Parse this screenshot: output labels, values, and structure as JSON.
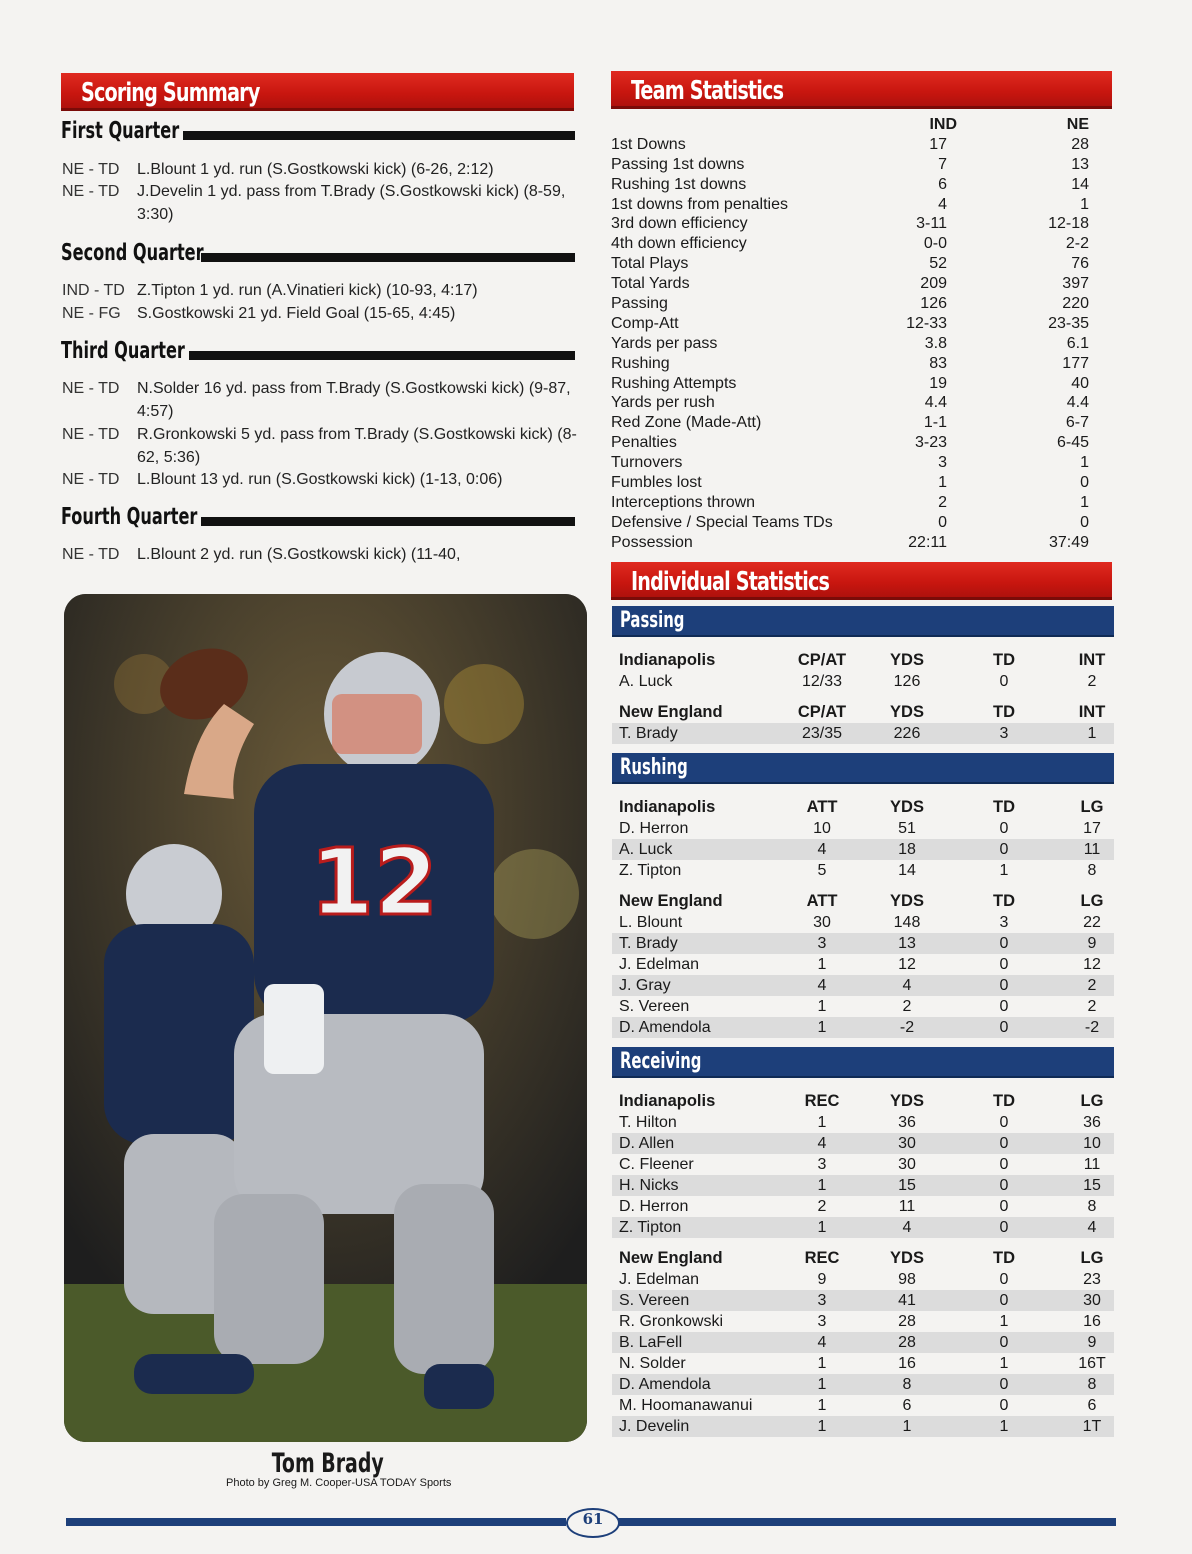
{
  "scoring": {
    "title": "Scoring Summary",
    "quarters": [
      {
        "name": "First Quarter",
        "plays": [
          {
            "tag": "NE - TD",
            "desc": "L.Blount 1 yd. run (S.Gostkowski kick) (6-26, 2:12)"
          },
          {
            "tag": "NE - TD",
            "desc": "J.Develin 1 yd. pass from T.Brady (S.Gostkowski kick) (8-59, 3:30)"
          }
        ]
      },
      {
        "name": "Second Quarter",
        "plays": [
          {
            "tag": "IND - TD",
            "desc": "Z.Tipton 1 yd. run (A.Vinatieri kick) (10-93, 4:17)"
          },
          {
            "tag": "NE - FG",
            "desc": "S.Gostkowski 21 yd. Field Goal (15-65, 4:45)"
          }
        ]
      },
      {
        "name": "Third Quarter",
        "plays": [
          {
            "tag": "NE - TD",
            "desc": "N.Solder 16 yd. pass from T.Brady (S.Gostkowski kick) (9-87, 4:57)"
          },
          {
            "tag": "NE - TD",
            "desc": "R.Gronkowski 5 yd. pass from T.Brady (S.Gostkowski kick) (8-62, 5:36)"
          },
          {
            "tag": "NE - TD",
            "desc": "L.Blount 13 yd. run (S.Gostkowski kick) (1-13, 0:06)"
          }
        ]
      },
      {
        "name": "Fourth Quarter",
        "plays": [
          {
            "tag": "NE - TD",
            "desc": "L.Blount 2 yd. run (S.Gostkowski kick) (11-40,"
          }
        ]
      }
    ]
  },
  "team_stats": {
    "title": "Team Statistics",
    "col1": "IND",
    "col2": "NE",
    "rows": [
      [
        "1st Downs",
        "17",
        "28"
      ],
      [
        "Passing 1st downs",
        "7",
        "13"
      ],
      [
        "Rushing 1st downs",
        "6",
        "14"
      ],
      [
        "1st downs from penalties",
        "4",
        "1"
      ],
      [
        "3rd down efficiency",
        "3-11",
        "12-18"
      ],
      [
        "4th down efficiency",
        "0-0",
        "2-2"
      ],
      [
        "Total Plays",
        "52",
        "76"
      ],
      [
        "Total Yards",
        "209",
        "397"
      ],
      [
        "Passing",
        "126",
        "220"
      ],
      [
        "Comp-Att",
        "12-33",
        "23-35"
      ],
      [
        "Yards per pass",
        "3.8",
        "6.1"
      ],
      [
        "Rushing",
        "83",
        "177"
      ],
      [
        "Rushing Attempts",
        "19",
        "40"
      ],
      [
        "Yards per rush",
        "4.4",
        "4.4"
      ],
      [
        "Red Zone (Made-Att)",
        "1-1",
        "6-7"
      ],
      [
        "Penalties",
        "3-23",
        "6-45"
      ],
      [
        "Turnovers",
        "3",
        "1"
      ],
      [
        "Fumbles lost",
        "1",
        "0"
      ],
      [
        "Interceptions thrown",
        "2",
        "1"
      ],
      [
        "Defensive / Special Teams TDs",
        "0",
        "0"
      ],
      [
        "Possession",
        "22:11",
        "37:49"
      ]
    ]
  },
  "individual": {
    "title": "Individual Statistics",
    "sections": [
      {
        "name": "Passing",
        "groups": [
          {
            "team": "Indianapolis",
            "cols": [
              "CP/AT",
              "YDS",
              "TD",
              "INT"
            ],
            "rows": [
              [
                "A. Luck",
                "12/33",
                "126",
                "0",
                "2"
              ]
            ]
          },
          {
            "team": "New England",
            "cols": [
              "CP/AT",
              "YDS",
              "TD",
              "INT"
            ],
            "rows": [
              [
                "T. Brady",
                "23/35",
                "226",
                "3",
                "1"
              ]
            ]
          }
        ]
      },
      {
        "name": "Rushing",
        "groups": [
          {
            "team": "Indianapolis",
            "cols": [
              "ATT",
              "YDS",
              "TD",
              "LG"
            ],
            "rows": [
              [
                "D. Herron",
                "10",
                "51",
                "0",
                "17"
              ],
              [
                "A. Luck",
                "4",
                "18",
                "0",
                "11"
              ],
              [
                "Z. Tipton",
                "5",
                "14",
                "1",
                "8"
              ]
            ]
          },
          {
            "team": "New England",
            "cols": [
              "ATT",
              "YDS",
              "TD",
              "LG"
            ],
            "rows": [
              [
                "L. Blount",
                "30",
                "148",
                "3",
                "22"
              ],
              [
                "T. Brady",
                "3",
                "13",
                "0",
                "9"
              ],
              [
                "J. Edelman",
                "1",
                "12",
                "0",
                "12"
              ],
              [
                "J. Gray",
                "4",
                "4",
                "0",
                "2"
              ],
              [
                "S. Vereen",
                "1",
                "2",
                "0",
                "2"
              ],
              [
                "D. Amendola",
                "1",
                "-2",
                "0",
                "-2"
              ]
            ]
          }
        ]
      },
      {
        "name": "Receiving",
        "groups": [
          {
            "team": "Indianapolis",
            "cols": [
              "REC",
              "YDS",
              "TD",
              "LG"
            ],
            "rows": [
              [
                "T. Hilton",
                "1",
                "36",
                "0",
                "36"
              ],
              [
                "D. Allen",
                "4",
                "30",
                "0",
                "10"
              ],
              [
                "C. Fleener",
                "3",
                "30",
                "0",
                "11"
              ],
              [
                "H. Nicks",
                "1",
                "15",
                "0",
                "15"
              ],
              [
                "D. Herron",
                "2",
                "11",
                "0",
                "8"
              ],
              [
                "Z. Tipton",
                "1",
                "4",
                "0",
                "4"
              ]
            ]
          },
          {
            "team": "New England",
            "cols": [
              "REC",
              "YDS",
              "TD",
              "LG"
            ],
            "rows": [
              [
                "J. Edelman",
                "9",
                "98",
                "0",
                "23"
              ],
              [
                "S. Vereen",
                "3",
                "41",
                "0",
                "30"
              ],
              [
                "R. Gronkowski",
                "3",
                "28",
                "1",
                "16"
              ],
              [
                "B. LaFell",
                "4",
                "28",
                "0",
                "9"
              ],
              [
                "N. Solder",
                "1",
                "16",
                "1",
                "16T"
              ],
              [
                "D. Amendola",
                "1",
                "8",
                "0",
                "8"
              ],
              [
                "M. Hoomanawanui",
                "1",
                "6",
                "0",
                "6"
              ],
              [
                "J. Develin",
                "1",
                "1",
                "1",
                "1T"
              ]
            ]
          }
        ]
      }
    ]
  },
  "photo": {
    "jersey_number": "12",
    "caption_name": "Tom Brady",
    "credit": "Photo by Greg M. Cooper-USA TODAY Sports"
  },
  "page_number": "61",
  "colors": {
    "red": "#c8160f",
    "blue": "#1d3f7a"
  }
}
